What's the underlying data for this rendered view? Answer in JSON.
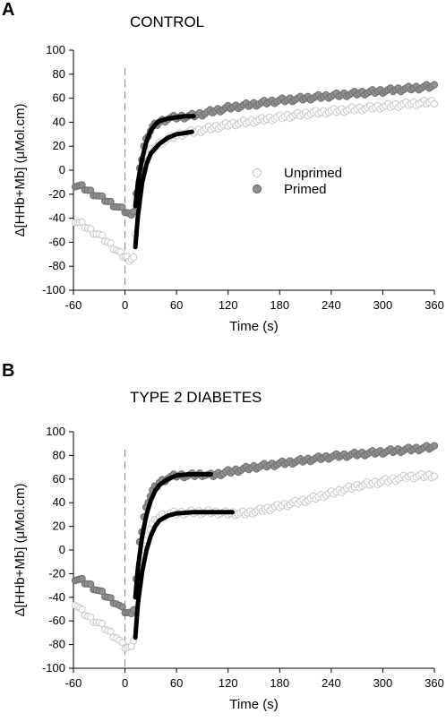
{
  "chart_data": [
    {
      "type": "scatter",
      "panel_label": "A",
      "title": "CONTROL",
      "xlabel": "Time (s)",
      "ylabel": "Δ[HHb+Mb] (μMol.cm)",
      "xlim": [
        -60,
        360
      ],
      "ylim": [
        -100,
        100
      ],
      "xticks": [
        -60,
        0,
        60,
        120,
        180,
        240,
        300,
        360
      ],
      "yticks": [
        -100,
        -80,
        -60,
        -40,
        -20,
        0,
        20,
        40,
        60,
        80,
        100
      ],
      "exercise_onset_marker": 0,
      "legend_position": "right-center",
      "series": [
        {
          "name": "Unprimed",
          "color": "#d9d9d9",
          "points": [
            [
              -58,
              -42
            ],
            [
              -50,
              -45
            ],
            [
              -40,
              -50
            ],
            [
              -30,
              -54
            ],
            [
              -20,
              -60
            ],
            [
              -10,
              -66
            ],
            [
              -5,
              -70
            ],
            [
              0,
              -72
            ],
            [
              5,
              -74
            ],
            [
              10,
              -73
            ],
            [
              12,
              -55
            ],
            [
              15,
              -25
            ],
            [
              20,
              -5
            ],
            [
              25,
              8
            ],
            [
              30,
              16
            ],
            [
              40,
              22
            ],
            [
              50,
              26
            ],
            [
              60,
              29
            ],
            [
              70,
              31
            ],
            [
              80,
              32
            ],
            [
              100,
              35
            ],
            [
              120,
              38
            ],
            [
              150,
              41
            ],
            [
              180,
              44
            ],
            [
              210,
              47
            ],
            [
              240,
              49
            ],
            [
              270,
              51
            ],
            [
              300,
              53
            ],
            [
              330,
              55
            ],
            [
              360,
              57
            ]
          ],
          "fit": [
            [
              12,
              -64
            ],
            [
              15,
              -38
            ],
            [
              20,
              -10
            ],
            [
              25,
              5
            ],
            [
              30,
              14
            ],
            [
              40,
              22
            ],
            [
              50,
              27
            ],
            [
              60,
              30
            ],
            [
              70,
              31
            ],
            [
              78,
              32
            ]
          ]
        },
        {
          "name": "Primed",
          "color": "#8c8c8c",
          "points": [
            [
              -58,
              -12
            ],
            [
              -50,
              -14
            ],
            [
              -40,
              -18
            ],
            [
              -30,
              -22
            ],
            [
              -20,
              -26
            ],
            [
              -10,
              -30
            ],
            [
              0,
              -34
            ],
            [
              5,
              -37
            ],
            [
              10,
              -34
            ],
            [
              13,
              -20
            ],
            [
              17,
              0
            ],
            [
              22,
              20
            ],
            [
              27,
              30
            ],
            [
              32,
              36
            ],
            [
              40,
              40
            ],
            [
              50,
              43
            ],
            [
              60,
              44
            ],
            [
              75,
              45
            ],
            [
              90,
              47
            ],
            [
              120,
              52
            ],
            [
              150,
              55
            ],
            [
              180,
              58
            ],
            [
              210,
              60
            ],
            [
              240,
              62
            ],
            [
              270,
              64
            ],
            [
              300,
              66
            ],
            [
              330,
              68
            ],
            [
              360,
              70
            ]
          ],
          "fit": [
            [
              12,
              -30
            ],
            [
              15,
              -10
            ],
            [
              20,
              10
            ],
            [
              25,
              24
            ],
            [
              30,
              33
            ],
            [
              35,
              38
            ],
            [
              40,
              41
            ],
            [
              50,
              43
            ],
            [
              60,
              44
            ],
            [
              70,
              45
            ],
            [
              80,
              45
            ]
          ]
        }
      ]
    },
    {
      "type": "scatter",
      "panel_label": "B",
      "title": "TYPE 2 DIABETES",
      "xlabel": "Time (s)",
      "ylabel": "Δ[HHb+Mb] (μMol.cm)",
      "xlim": [
        -60,
        360
      ],
      "ylim": [
        -100,
        100
      ],
      "xticks": [
        -60,
        0,
        60,
        120,
        180,
        240,
        300,
        360
      ],
      "yticks": [
        -100,
        -80,
        -60,
        -40,
        -20,
        0,
        20,
        40,
        60,
        80,
        100
      ],
      "exercise_onset_marker": 0,
      "series": [
        {
          "name": "Unprimed",
          "color": "#d9d9d9",
          "points": [
            [
              -58,
              -45
            ],
            [
              -50,
              -52
            ],
            [
              -40,
              -58
            ],
            [
              -30,
              -62
            ],
            [
              -20,
              -68
            ],
            [
              -10,
              -74
            ],
            [
              -3,
              -80
            ],
            [
              0,
              -82
            ],
            [
              5,
              -83
            ],
            [
              10,
              -76
            ],
            [
              13,
              -50
            ],
            [
              17,
              -20
            ],
            [
              22,
              0
            ],
            [
              27,
              14
            ],
            [
              32,
              22
            ],
            [
              40,
              28
            ],
            [
              50,
              31
            ],
            [
              60,
              31
            ],
            [
              80,
              32
            ],
            [
              100,
              32
            ],
            [
              120,
              31
            ],
            [
              140,
              31
            ],
            [
              160,
              34
            ],
            [
              180,
              37
            ],
            [
              210,
              42
            ],
            [
              240,
              48
            ],
            [
              270,
              54
            ],
            [
              300,
              58
            ],
            [
              330,
              62
            ],
            [
              360,
              63
            ]
          ],
          "fit": [
            [
              12,
              -74
            ],
            [
              15,
              -45
            ],
            [
              20,
              -18
            ],
            [
              25,
              0
            ],
            [
              30,
              12
            ],
            [
              35,
              20
            ],
            [
              40,
              25
            ],
            [
              50,
              29
            ],
            [
              60,
              31
            ],
            [
              80,
              32
            ],
            [
              100,
              32
            ],
            [
              125,
              32
            ]
          ]
        },
        {
          "name": "Primed",
          "color": "#8c8c8c",
          "points": [
            [
              -58,
              -24
            ],
            [
              -50,
              -26
            ],
            [
              -40,
              -30
            ],
            [
              -30,
              -35
            ],
            [
              -20,
              -40
            ],
            [
              -10,
              -45
            ],
            [
              -3,
              -50
            ],
            [
              0,
              -52
            ],
            [
              5,
              -54
            ],
            [
              10,
              -50
            ],
            [
              13,
              -25
            ],
            [
              17,
              5
            ],
            [
              22,
              28
            ],
            [
              27,
              42
            ],
            [
              32,
              50
            ],
            [
              40,
              57
            ],
            [
              50,
              61
            ],
            [
              60,
              63
            ],
            [
              75,
              63
            ],
            [
              90,
              64
            ],
            [
              100,
              63
            ],
            [
              120,
              66
            ],
            [
              150,
              70
            ],
            [
              180,
              73
            ],
            [
              210,
              76
            ],
            [
              240,
              79
            ],
            [
              270,
              81
            ],
            [
              300,
              83
            ],
            [
              330,
              85
            ],
            [
              360,
              87
            ]
          ],
          "fit": [
            [
              12,
              -40
            ],
            [
              15,
              -15
            ],
            [
              20,
              12
            ],
            [
              25,
              30
            ],
            [
              30,
              42
            ],
            [
              35,
              50
            ],
            [
              40,
              55
            ],
            [
              50,
              60
            ],
            [
              60,
              63
            ],
            [
              75,
              64
            ],
            [
              100,
              64
            ]
          ]
        }
      ]
    }
  ]
}
